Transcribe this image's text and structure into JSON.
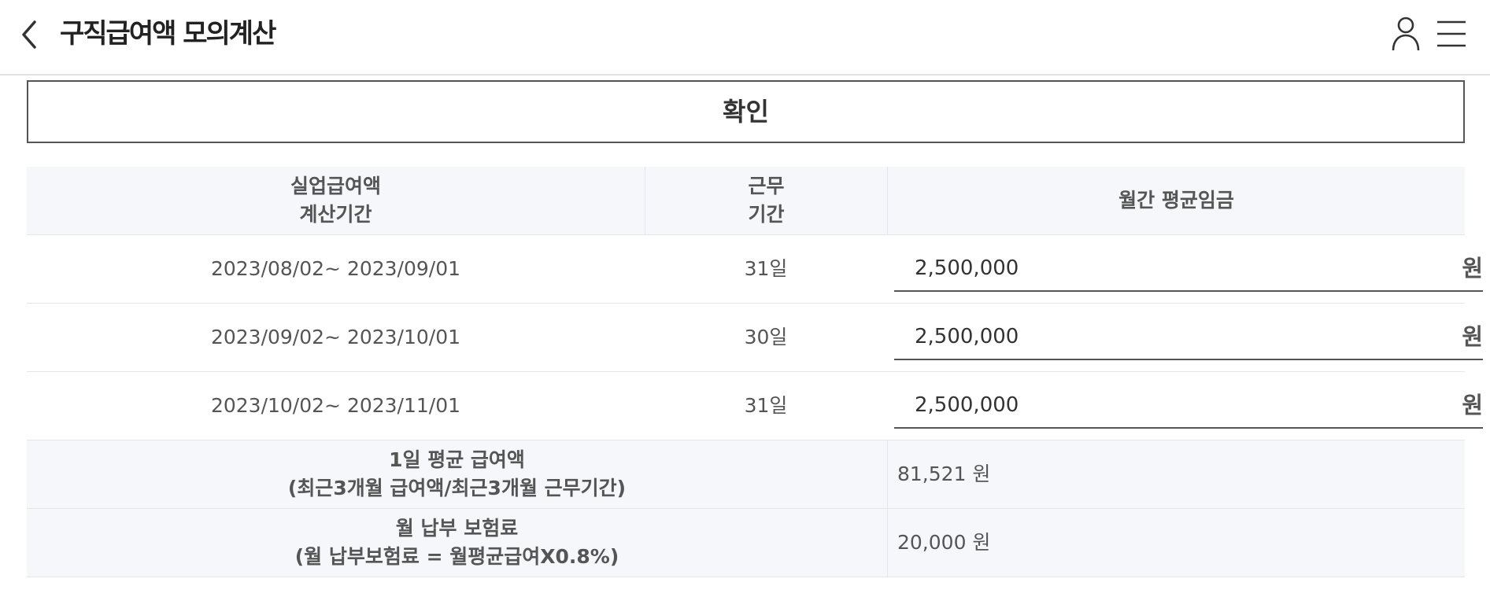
{
  "header": {
    "title": "구직급여액 모의계산"
  },
  "confirm_label": "확인",
  "table": {
    "headers": {
      "period_line1": "실업급여액",
      "period_line2": "계산기간",
      "days_line1": "근무",
      "days_line2": "기간",
      "wage": "월간 평균임금"
    },
    "rows": [
      {
        "period": "2023/08/02~ 2023/09/01",
        "days": "31일",
        "wage": "2,500,000",
        "unit": "원"
      },
      {
        "period": "2023/09/02~ 2023/10/01",
        "days": "30일",
        "wage": "2,500,000",
        "unit": "원"
      },
      {
        "period": "2023/10/02~ 2023/11/01",
        "days": "31일",
        "wage": "2,500,000",
        "unit": "원"
      }
    ],
    "summary": [
      {
        "label_line1": "1일 평균 급여액",
        "label_line2": "(최근3개월 급여액/최근3개월 근무기간)",
        "value": "81,521 원"
      },
      {
        "label_line1": "월 납부 보험료",
        "label_line2": "(월 납부보험료 = 월평균급여X0.8%)",
        "value": "20,000 원"
      }
    ]
  },
  "icons": {
    "back": "chevron-left-icon",
    "user": "user-icon",
    "menu": "hamburger-menu-icon"
  },
  "colors": {
    "table_header_bg": "#f5f7fb",
    "text": "#333333",
    "border": "#555555"
  }
}
